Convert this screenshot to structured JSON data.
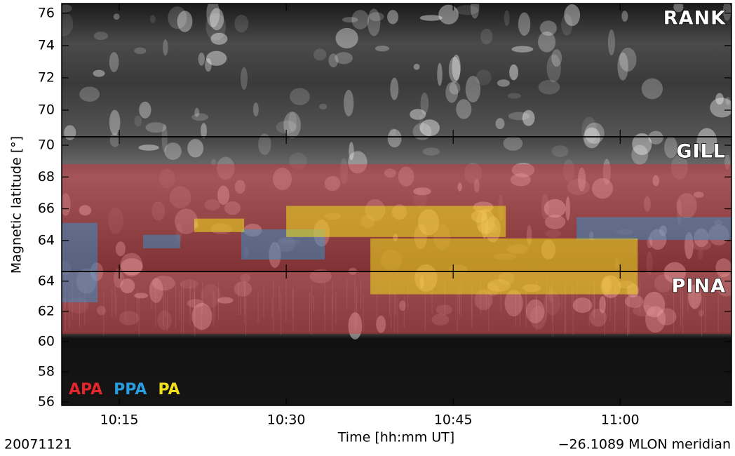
{
  "chart_data": {
    "type": "keogram",
    "x_label": "Time [hh:mm UT]",
    "y_label": "Magnetic latitude [°]",
    "date": "20071121",
    "meridian": "−26.1089 MLON meridian",
    "xlim": [
      609.83,
      670
    ],
    "xticks": [
      {
        "value": 615,
        "label": "10:15"
      },
      {
        "value": 630,
        "label": "10:30"
      },
      {
        "value": 645,
        "label": "10:45"
      },
      {
        "value": 660,
        "label": "11:00"
      }
    ],
    "series": [
      {
        "name": "APA",
        "color": "#e3262b"
      },
      {
        "name": "PPA",
        "color": "#2a9de0"
      },
      {
        "name": "PA",
        "color": "#f2e01c"
      }
    ],
    "panels": [
      {
        "station": "RANK",
        "ylim": [
          68.35,
          76.6
        ],
        "yticks": [
          70,
          72,
          74,
          76
        ],
        "regions": {}
      },
      {
        "station": "GILL",
        "ylim": [
          62.05,
          70.53
        ],
        "yticks": [
          64,
          66,
          68,
          70
        ],
        "regions": {
          "APA": [
            {
              "time": [
                609.83,
                670
              ],
              "lat": [
                62.05,
                68.8
              ]
            }
          ],
          "PPA": [
            {
              "time": [
                609.83,
                613.05
              ],
              "lat": [
                62.05,
                65.11
              ]
            },
            {
              "time": [
                617.14,
                620.48
              ],
              "lat": [
                63.51,
                64.36
              ]
            },
            {
              "time": [
                625.96,
                633.46
              ],
              "lat": [
                62.8,
                64.71
              ]
            },
            {
              "time": [
                656.08,
                670
              ],
              "lat": [
                64.04,
                65.47
              ]
            }
          ],
          "PA": [
            {
              "time": [
                621.74,
                626.22
              ],
              "lat": [
                64.53,
                65.38
              ]
            },
            {
              "time": [
                630,
                649.72
              ],
              "lat": [
                64.22,
                66.18
              ]
            },
            {
              "time": [
                637.56,
                661.57
              ],
              "lat": [
                62.05,
                64.13
              ]
            }
          ]
        }
      },
      {
        "station": "PINA",
        "ylim": [
          55.77,
          64.64
        ],
        "yticks": [
          56,
          58,
          60,
          62,
          64
        ],
        "regions": {
          "APA": [
            {
              "time": [
                609.83,
                670
              ],
              "lat": [
                60.5,
                64.64
              ]
            }
          ],
          "PPA": [
            {
              "time": [
                609.83,
                613.05
              ],
              "lat": [
                62.6,
                64.64
              ]
            }
          ],
          "PA": [
            {
              "time": [
                637.56,
                661.57
              ],
              "lat": [
                63.13,
                64.64
              ]
            }
          ]
        }
      }
    ]
  }
}
